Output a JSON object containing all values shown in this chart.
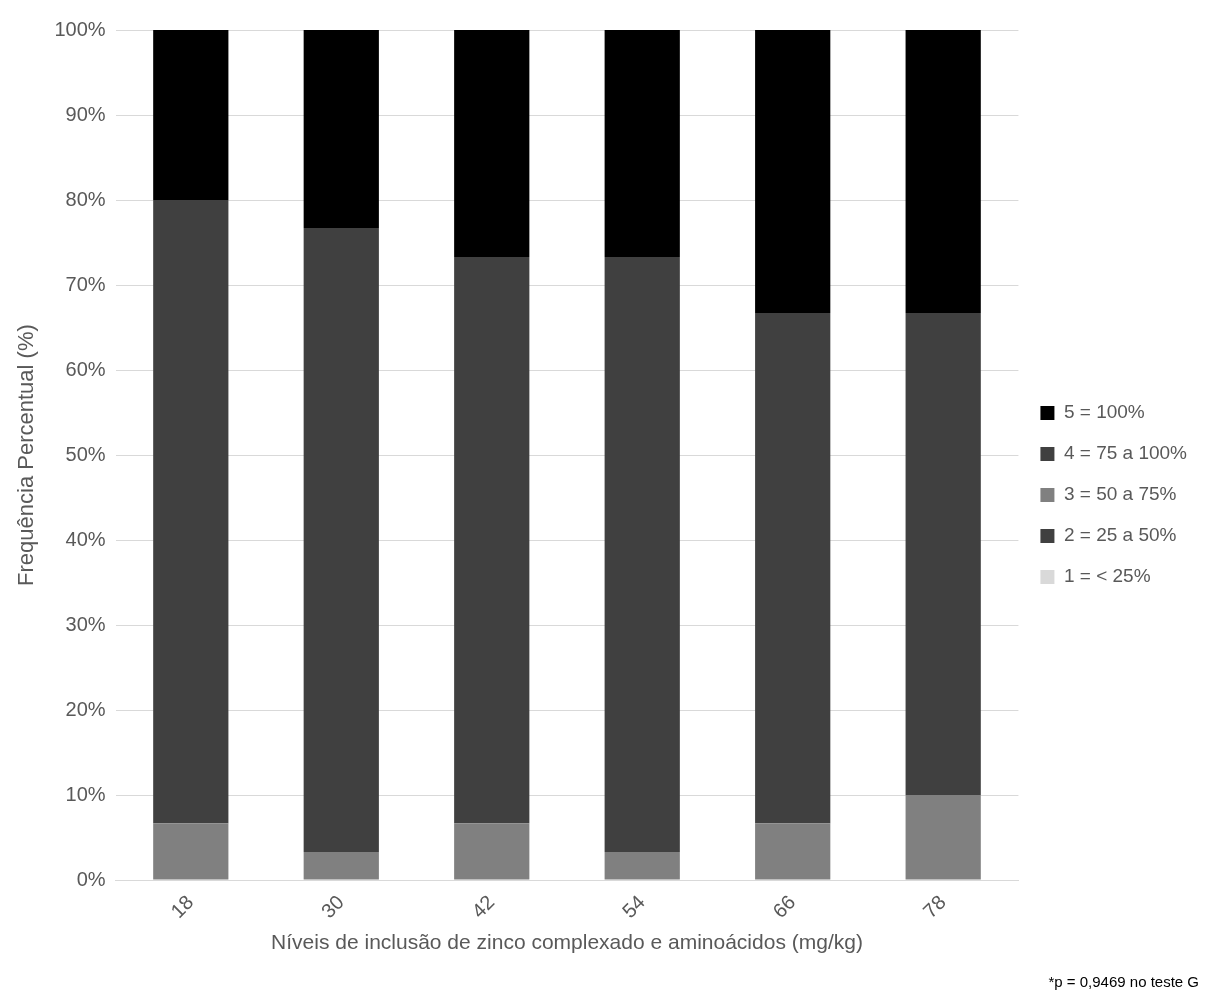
{
  "chart_data": {
    "type": "bar",
    "stacked": true,
    "categories": [
      "18",
      "30",
      "42",
      "54",
      "66",
      "78"
    ],
    "series": [
      {
        "name": "1 = < 25%",
        "color": "#d9d9d9",
        "values": [
          0,
          0,
          0,
          0,
          0,
          0
        ]
      },
      {
        "name": "2 = 25 a 50%",
        "color": "#404040",
        "values": [
          0,
          0,
          0,
          0,
          0,
          0
        ]
      },
      {
        "name": "3 = 50 a 75%",
        "color": "#808080",
        "values": [
          6.7,
          3.3,
          6.7,
          3.3,
          6.7,
          10
        ]
      },
      {
        "name": "4 = 75 a 100%",
        "color": "#404040",
        "values": [
          73.3,
          73.4,
          66.6,
          70,
          60,
          56.7
        ]
      },
      {
        "name": "5 = 100%",
        "color": "#000000",
        "values": [
          20,
          23.3,
          26.7,
          26.7,
          33.3,
          33.3
        ]
      }
    ],
    "ylim": [
      0,
      100
    ],
    "yticks": [
      {
        "value": 0,
        "label": "0%"
      },
      {
        "value": 10,
        "label": "10%"
      },
      {
        "value": 20,
        "label": "20%"
      },
      {
        "value": 30,
        "label": "30%"
      },
      {
        "value": 40,
        "label": "40%"
      },
      {
        "value": 50,
        "label": "50%"
      },
      {
        "value": 60,
        "label": "60%"
      },
      {
        "value": 70,
        "label": "70%"
      },
      {
        "value": 80,
        "label": "80%"
      },
      {
        "value": 90,
        "label": "90%"
      },
      {
        "value": 100,
        "label": "100%"
      }
    ],
    "grid": "y",
    "legend": "right",
    "ylabel": "Frequência Percentual (%)",
    "xlabel": "Níveis de inclusão de zinco complexado e aminoácidos (mg/kg)",
    "annotations": [
      "*p = 0,9469 no teste G"
    ]
  }
}
